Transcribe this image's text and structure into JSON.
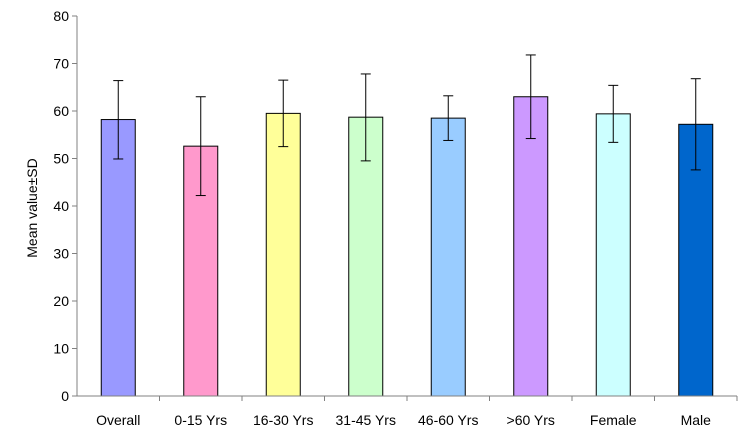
{
  "chart_data": {
    "type": "bar",
    "title": "",
    "xlabel": "",
    "ylabel": "Mean value±SD",
    "ylim": [
      0,
      80
    ],
    "yticks": [
      0,
      10,
      20,
      30,
      40,
      50,
      60,
      70,
      80
    ],
    "grid": false,
    "legend": "none",
    "categories": [
      "Overall",
      "0-15 Yrs",
      "16-30 Yrs",
      "31-45 Yrs",
      "46-60 Yrs",
      ">60 Yrs",
      "Female",
      "Male"
    ],
    "values": [
      58.2,
      52.6,
      59.5,
      58.7,
      58.5,
      63.0,
      59.4,
      57.2
    ],
    "error_low": [
      49.9,
      42.2,
      52.5,
      49.5,
      53.8,
      54.2,
      53.4,
      47.6
    ],
    "error_high": [
      66.4,
      63.0,
      66.5,
      67.8,
      63.2,
      71.8,
      65.4,
      66.8
    ],
    "colors": [
      "#9999FF",
      "#FF99CC",
      "#FFFF99",
      "#CCFFCC",
      "#99CCFF",
      "#CC99FF",
      "#CCFFFF",
      "#0066CC"
    ]
  }
}
